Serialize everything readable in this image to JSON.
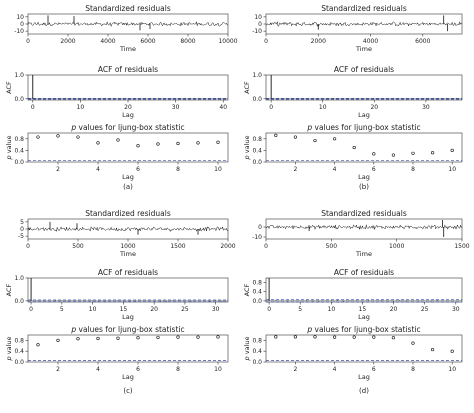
{
  "chart_data": [
    {
      "panel": "(a)",
      "residuals": {
        "type": "line",
        "title": "Standardized residuals",
        "xlabel": "Time",
        "ylabel": "",
        "xticks": [
          0,
          2000,
          4000,
          6000,
          8000,
          10000
        ],
        "yticks": [
          10,
          0,
          -10
        ],
        "xlim": [
          0,
          10000
        ],
        "ylim": [
          -14,
          14
        ],
        "spikes": [
          {
            "x": 1000,
            "y": 12
          },
          {
            "x": 2300,
            "y": 11
          },
          {
            "x": 5600,
            "y": -9
          },
          {
            "x": 6100,
            "y": -7
          }
        ]
      },
      "acf": {
        "type": "bar",
        "title": "ACF of residuals",
        "xlabel": "Lag",
        "ylabel": "ACF",
        "xticks": [
          0,
          10,
          20,
          30,
          40
        ],
        "yticks": [
          0.0,
          1.0
        ],
        "xlim": [
          -1,
          41
        ],
        "ylim": [
          -0.05,
          1.0
        ],
        "max_lag": 40,
        "ci": 0.02
      },
      "pvalues": {
        "type": "scatter",
        "title_italic": "p",
        "title_rest": " values for ljung-box statistic",
        "xlabel": "Lag",
        "ylabel_italic": "p",
        "ylabel_rest": " value",
        "xticks": [
          2,
          4,
          6,
          8,
          10
        ],
        "yticks": [
          0.0,
          0.4,
          0.8
        ],
        "ylim": [
          0,
          1
        ],
        "x": [
          1,
          2,
          3,
          4,
          5,
          6,
          7,
          8,
          9,
          10
        ],
        "y": [
          0.86,
          0.9,
          0.86,
          0.66,
          0.76,
          0.56,
          0.62,
          0.64,
          0.66,
          0.68
        ],
        "threshold": 0.05
      }
    },
    {
      "panel": "(b)",
      "residuals": {
        "type": "line",
        "title": "Standardized residuals",
        "xlabel": "Time",
        "ylabel": "",
        "xticks": [
          0,
          2000,
          4000,
          6000
        ],
        "yticks": [
          10,
          0,
          -10
        ],
        "xlim": [
          0,
          7500
        ],
        "ylim": [
          -14,
          14
        ],
        "spikes": [
          {
            "x": 2000,
            "y": -8
          },
          {
            "x": 6800,
            "y": 12
          },
          {
            "x": 6950,
            "y": -10
          }
        ]
      },
      "acf": {
        "type": "bar",
        "title": "ACF of residuals",
        "xlabel": "Lag",
        "ylabel": "ACF",
        "xticks": [
          0,
          10,
          20,
          30
        ],
        "yticks": [
          0.0,
          1.0
        ],
        "xlim": [
          -1,
          37
        ],
        "ylim": [
          -0.05,
          1.0
        ],
        "max_lag": 36,
        "ci": 0.02
      },
      "pvalues": {
        "type": "scatter",
        "title_italic": "p",
        "title_rest": " values for ljung-box statistic",
        "xlabel": "Lag",
        "ylabel_italic": "p",
        "ylabel_rest": " value",
        "xticks": [
          2,
          4,
          6,
          8,
          10
        ],
        "yticks": [
          0.0,
          0.4,
          0.8
        ],
        "ylim": [
          0,
          1
        ],
        "x": [
          1,
          2,
          3,
          4,
          5,
          6,
          7,
          8,
          9,
          10
        ],
        "y": [
          0.92,
          0.86,
          0.74,
          0.8,
          0.5,
          0.28,
          0.24,
          0.3,
          0.32,
          0.4
        ],
        "threshold": 0.05
      }
    },
    {
      "panel": "(c)",
      "residuals": {
        "type": "line",
        "title": "Standardized residuals",
        "xlabel": "Time",
        "ylabel": "",
        "xticks": [
          0,
          500,
          1000,
          1500,
          2000
        ],
        "yticks": [
          5,
          0,
          -5
        ],
        "xlim": [
          0,
          2000
        ],
        "ylim": [
          -7,
          7
        ],
        "spikes": [
          {
            "x": 220,
            "y": 5
          },
          {
            "x": 490,
            "y": 4
          },
          {
            "x": 1100,
            "y": -4
          },
          {
            "x": 1700,
            "y": -4
          }
        ]
      },
      "acf": {
        "type": "bar",
        "title": "ACF of residuals",
        "xlabel": "Lag",
        "ylabel": "ACF",
        "xticks": [
          0,
          5,
          10,
          15,
          20,
          25,
          30
        ],
        "yticks": [
          0.0,
          1.0
        ],
        "xlim": [
          -0.5,
          32
        ],
        "ylim": [
          -0.05,
          1.0
        ],
        "max_lag": 31,
        "ci": 0.04
      },
      "pvalues": {
        "type": "scatter",
        "title_italic": "p",
        "title_rest": " values for ljung-box statistic",
        "xlabel": "Lag",
        "ylabel_italic": "p",
        "ylabel_rest": " value",
        "xticks": [
          2,
          4,
          6,
          8,
          10
        ],
        "yticks": [
          0.0,
          0.4,
          0.8
        ],
        "ylim": [
          0,
          1
        ],
        "x": [
          1,
          2,
          3,
          4,
          5,
          6,
          7,
          8,
          9,
          10
        ],
        "y": [
          0.64,
          0.8,
          0.86,
          0.87,
          0.88,
          0.9,
          0.91,
          0.92,
          0.92,
          0.93
        ],
        "threshold": 0.05
      }
    },
    {
      "panel": "(d)",
      "residuals": {
        "type": "line",
        "title": "Standardized residuals",
        "xlabel": "Time",
        "ylabel": "",
        "xticks": [
          0,
          500,
          1000,
          1500
        ],
        "tick_labels": [
          "0",
          "500",
          "1000",
          "1500"
        ],
        "yticks": [
          0,
          -10
        ],
        "xlim": [
          0,
          1500
        ],
        "ylim": [
          -12,
          8
        ],
        "spikes": [
          {
            "x": 330,
            "y": -4
          },
          {
            "x": 1350,
            "y": 7
          },
          {
            "x": 1360,
            "y": -10
          }
        ]
      },
      "acf": {
        "type": "bar",
        "title": "ACF of residuals",
        "xlabel": "Lag",
        "ylabel": "ACF",
        "xticks": [
          0,
          5,
          10,
          15,
          20,
          25,
          30
        ],
        "yticks": [
          0.0,
          0.4,
          0.8
        ],
        "xlim": [
          -0.5,
          31
        ],
        "ylim": [
          -0.05,
          1.0
        ],
        "max_lag": 30,
        "ci": 0.05
      },
      "pvalues": {
        "type": "scatter",
        "title_italic": "p",
        "title_rest": " values for ljung-box statistic",
        "xlabel": "Lag",
        "ylabel_italic": "p",
        "ylabel_rest": " value",
        "xticks": [
          2,
          4,
          6,
          8,
          10
        ],
        "yticks": [
          0.0,
          0.4,
          0.8
        ],
        "ylim": [
          0,
          1
        ],
        "x": [
          1,
          2,
          3,
          4,
          5,
          6,
          7,
          8,
          9,
          10
        ],
        "y": [
          0.93,
          0.93,
          0.93,
          0.92,
          0.92,
          0.92,
          0.9,
          0.7,
          0.46,
          0.4
        ],
        "threshold": 0.05
      }
    }
  ]
}
